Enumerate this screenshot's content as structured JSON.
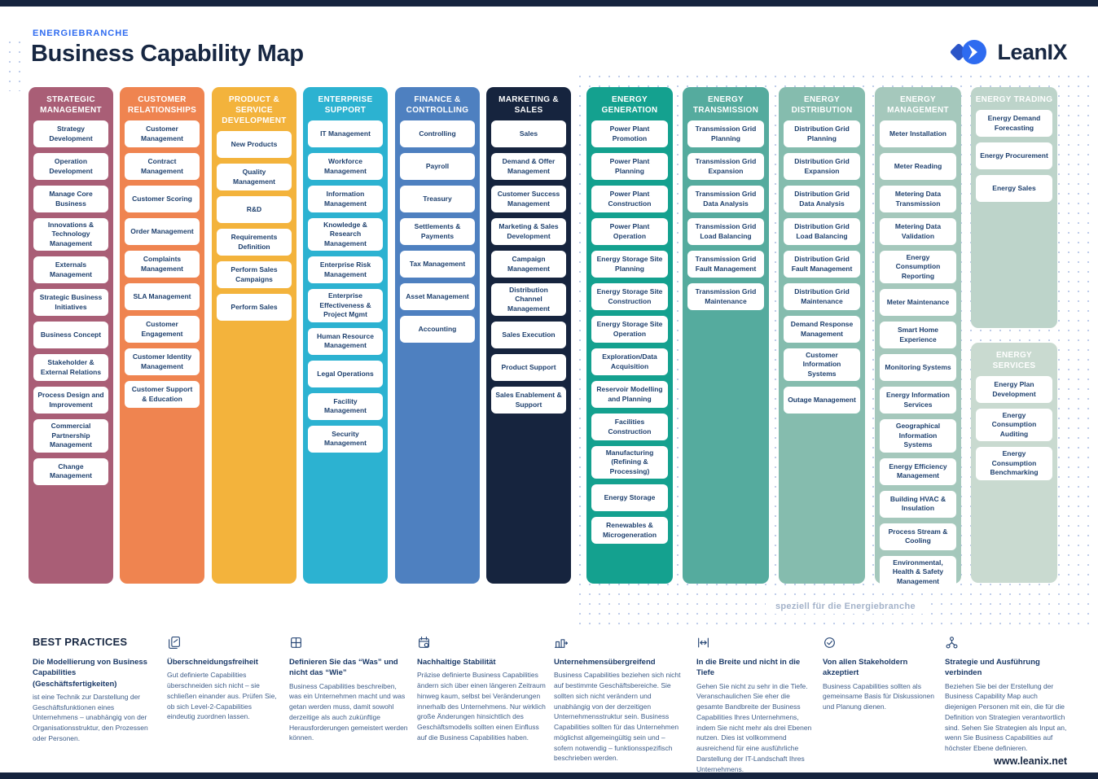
{
  "page": {
    "eyebrow": "ENERGIEBRANCHE",
    "title": "Business Capability Map",
    "logo_text": "LeanIX",
    "energy_caption": "speziell für die Energiebranche",
    "footer_url": "www.leanix.net"
  },
  "colors": {
    "navy": "#16243e",
    "accent_blue": "#2e6bf0",
    "card_text": "#1e406e",
    "dots": "#bfcdea"
  },
  "columns": [
    {
      "label": "Strategic Management",
      "color": "#a95e76",
      "items": [
        "Strategy Development",
        "Operation Development",
        "Manage Core Business",
        "Innovations & Technology Management",
        "Externals Management",
        "Strategic Business Initiatives",
        "Business Concept",
        "Stakeholder & External Relations",
        "Process Design and Improvement",
        "Commercial Partnership Management",
        "Change Management"
      ]
    },
    {
      "label": "Customer Relationships",
      "color": "#ef8450",
      "items": [
        "Customer Management",
        "Contract Management",
        "Customer Scoring",
        "Order Management",
        "Complaints Management",
        "SLA Management",
        "Customer Engagement",
        "Customer Identity Management",
        "Customer Support & Education"
      ]
    },
    {
      "label": "Product & Service Development",
      "color": "#f3b33c",
      "items": [
        "New Products",
        "Quality Management",
        "R&D",
        "Requirements Definition",
        "Perform Sales Campaigns",
        "Perform Sales"
      ]
    },
    {
      "label": "Enterprise Support",
      "color": "#2cb2d1",
      "items": [
        "IT Management",
        "Workforce Management",
        "Information Management",
        "Knowledge & Research Management",
        "Enterprise Risk Management",
        "Enterprise Effectiveness & Project Mgmt",
        "Human Resource Management",
        "Legal Operations",
        "Facility Management",
        "Security Management"
      ]
    },
    {
      "label": "Finance & Controlling",
      "color": "#4e80c0",
      "items": [
        "Controlling",
        "Payroll",
        "Treasury",
        "Settlements & Payments",
        "Tax Management",
        "Asset Management",
        "Accounting"
      ]
    },
    {
      "label": "Marketing & Sales",
      "color": "#16243e",
      "items": [
        "Sales",
        "Demand & Offer Management",
        "Customer Success Management",
        "Marketing & Sales Development",
        "Campaign Management",
        "Distribution Channel Management",
        "Sales Execution",
        "Product Support",
        "Sales Enablement & Support"
      ]
    },
    {
      "label": "Energy Generation",
      "color": "#14a18f",
      "items": [
        "Power Plant Promotion",
        "Power Plant Planning",
        "Power Plant Construction",
        "Power Plant Operation",
        "Energy Storage Site Planning",
        "Energy Storage Site Construction",
        "Energy Storage Site Operation",
        "Exploration/Data Acquisition",
        "Reservoir Modelling and Planning",
        "Facilities Construction",
        "Manufacturing (Refining & Processing)",
        "Energy Storage",
        "Renewables & Microgeneration"
      ]
    },
    {
      "label": "Energy Transmission",
      "color": "#55ab9e",
      "items": [
        "Transmission Grid Planning",
        "Transmission Grid Expansion",
        "Transmission Grid Data Analysis",
        "Transmission Grid Load Balancing",
        "Transmission Grid Fault Management",
        "Transmission Grid Maintenance"
      ]
    },
    {
      "label": "Energy Distribution",
      "color": "#85bcae",
      "items": [
        "Distribution Grid Planning",
        "Distribution Grid Expansion",
        "Distribution Grid Data Analysis",
        "Distribution Grid Load Balancing",
        "Distribution Grid Fault Management",
        "Distribution Grid Maintenance",
        "Demand Response Management",
        "Customer Information Systems",
        "Outage Management"
      ]
    },
    {
      "label": "Energy Management",
      "color": "#a5c8bc",
      "items": [
        "Meter Installation",
        "Meter Reading",
        "Metering Data Transmission",
        "Metering Data Validation",
        "Energy Consumption Reporting",
        "Meter Maintenance",
        "Smart Home Experience",
        "Monitoring Systems",
        "Energy Information Services",
        "Geographical Information Systems",
        "Energy Efficiency Management",
        "Building HVAC & Insulation",
        "Process Stream & Cooling",
        "Environmental, Health & Safety Management"
      ]
    },
    {
      "label": "Energy Trading",
      "color": "#bdd4ca",
      "items": [
        "Energy Demand Forecasting",
        "Energy Procurement",
        "Energy Sales"
      ]
    },
    {
      "label": "Energy Services",
      "color": "#c9dad0",
      "items": [
        "Energy Plan Development",
        "Energy Consumption Auditing",
        "Energy Consumption Benchmarking"
      ]
    }
  ],
  "best_practices": {
    "heading": "BEST PRACTICES",
    "sections": [
      {
        "icon": "none",
        "title": "Die Modellierung von Business Capabilities (Geschäftsfertigkeiten)",
        "body": " ist eine Technik zur Darstellung der Geschäftsfunktionen eines Unternehmens – unabhängig von der Organisationsstruktur, den Prozessen oder Personen."
      },
      {
        "icon": "pages-icon",
        "title": "Überschneidungsfreiheit",
        "body": "Gut definierte Capabilities überschneiden sich nicht – sie schließen einander aus. Prüfen Sie, ob sich Level-2-Capabilities eindeutig zuordnen lassen."
      },
      {
        "icon": "window-icon",
        "title": "Definieren Sie das “Was” und nicht das “Wie”",
        "body": "Business Capabilities beschreiben, was ein Unternehmen macht und was getan werden muss, damit sowohl derzeitige als auch zukünftige Herausforderungen gemeistert werden können."
      },
      {
        "icon": "calendar-icon",
        "title": "Nachhaltige Stabilität",
        "body": "Präzise definierte Business Capabilities ändern sich über einen längeren Zeitraum hinweg kaum, selbst bei Veränderungen innerhalb des Unternehmens. Nur wirklich große Änderungen hinsichtlich des Geschäftsmodells sollten einen Einfluss auf die Business Capabilities haben."
      },
      {
        "icon": "building-icon",
        "title": "Unternehmensübergreifend",
        "body": "Business Capabilities beziehen sich nicht auf bestimmte Geschäftsbereiche. Sie sollten sich nicht verändern und unabhängig von der derzeitigen Unternehmensstruktur sein. Business Capabilities sollten für das Unternehmen möglichst allgemeingültig sein und – sofern notwendig – funktionsspezifisch beschrieben werden."
      },
      {
        "icon": "width-arrow-icon",
        "title": "In die Breite und nicht in die Tiefe",
        "body": "Gehen Sie nicht zu sehr in die Tiefe. Veranschaulichen Sie eher die gesamte Bandbreite der Business Capabilities Ihres Unternehmens, indem Sie nicht mehr als drei Ebenen nutzen. Dies ist vollkommend ausreichend für eine ausführliche Darstellung der IT-Landschaft Ihres Unternehmens."
      },
      {
        "icon": "check-circle-icon",
        "title": "Von allen Stakeholdern akzeptiert",
        "body": "Business Capabilities sollten als gemeinsame Basis für Diskussionen und Planung dienen."
      },
      {
        "icon": "share-nodes-icon",
        "title": "Strategie und Ausführung verbinden",
        "body": "Beziehen Sie bei der Erstellung der Business Capability Map auch diejenigen Personen mit ein, die für die Definition von Strategien verantwortlich sind. Sehen Sie Strategien als Input an, wenn Sie Business Capabilities auf höchster Ebene definieren."
      }
    ]
  }
}
